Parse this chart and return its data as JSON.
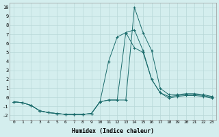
{
  "xlabel": "Humidex (Indice chaleur)",
  "background_color": "#d4eeee",
  "grid_color": "#b8d8d8",
  "line_color": "#1a6b6b",
  "xlim": [
    -0.5,
    23.5
  ],
  "ylim": [
    -2.5,
    10.5
  ],
  "xticks": [
    0,
    1,
    2,
    3,
    4,
    5,
    6,
    7,
    8,
    9,
    10,
    11,
    12,
    13,
    14,
    15,
    16,
    17,
    18,
    19,
    20,
    21,
    22,
    23
  ],
  "yticks": [
    -2,
    -1,
    0,
    1,
    2,
    3,
    4,
    5,
    6,
    7,
    8,
    9,
    10
  ],
  "series": [
    [
      -0.5,
      -0.6,
      -0.9,
      -1.5,
      -1.7,
      -1.8,
      -1.9,
      -1.9,
      -1.9,
      -1.8,
      -0.5,
      -0.3,
      -0.3,
      -0.3,
      10.0,
      7.2,
      5.2,
      1.0,
      0.3,
      0.3,
      0.4,
      0.4,
      0.3,
      0.1
    ],
    [
      -0.5,
      -0.6,
      -0.9,
      -1.5,
      -1.7,
      -1.8,
      -1.9,
      -1.9,
      -1.9,
      -1.8,
      -0.5,
      -0.3,
      -0.3,
      7.2,
      7.5,
      5.2,
      2.0,
      0.5,
      0.1,
      0.2,
      0.3,
      0.3,
      0.2,
      0.0
    ],
    [
      -0.5,
      -0.6,
      -0.9,
      -1.5,
      -1.7,
      -1.8,
      -1.9,
      -1.9,
      -1.9,
      -1.8,
      -0.5,
      4.0,
      6.7,
      7.2,
      5.5,
      5.0,
      2.0,
      0.5,
      -0.1,
      0.1,
      0.2,
      0.2,
      0.1,
      -0.1
    ]
  ]
}
